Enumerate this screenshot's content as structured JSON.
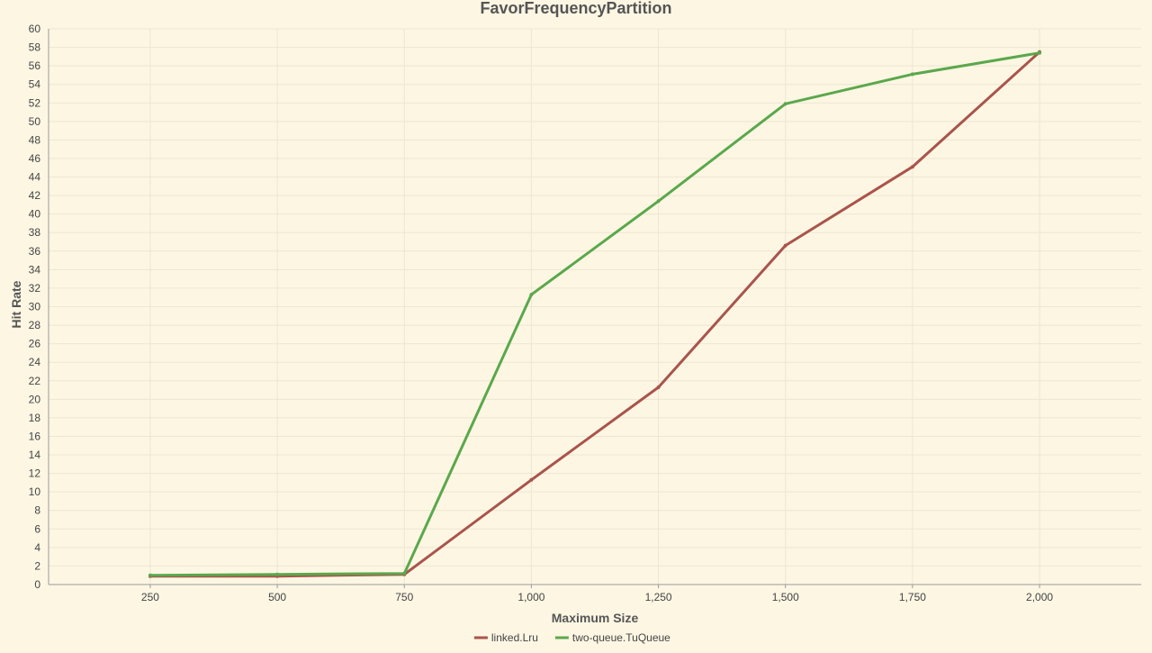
{
  "chart_data": {
    "type": "line",
    "title": "FavorFrequencyPartition",
    "xlabel": "Maximum Size",
    "ylabel": "Hit Rate",
    "x": [
      250,
      500,
      750,
      1000,
      1250,
      1500,
      1750,
      2000
    ],
    "x_tick_labels": [
      "250",
      "500",
      "750",
      "1,000",
      "1,250",
      "1,500",
      "1,750",
      "2,000"
    ],
    "xlim": [
      50,
      2200
    ],
    "ylim": [
      0,
      60
    ],
    "y_tick_step": 2,
    "grid": true,
    "legend_position": "bottom-center",
    "series": [
      {
        "name": "linked.Lru",
        "color": "#a9544c",
        "values": [
          0.9,
          0.9,
          1.1,
          11.3,
          21.3,
          36.6,
          45.1,
          57.5
        ]
      },
      {
        "name": "two-queue.TuQueue",
        "color": "#5aa84c",
        "values": [
          1.0,
          1.1,
          1.2,
          31.3,
          41.4,
          51.9,
          55.1,
          57.4
        ]
      }
    ],
    "colors": {
      "background": "#fdf6e3",
      "grid": "#ece6d2",
      "axis": "#999999",
      "text": "#555555"
    }
  }
}
